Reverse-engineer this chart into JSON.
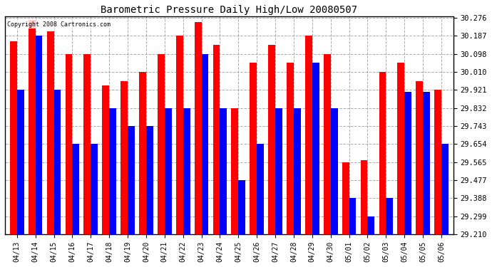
{
  "title": "Barometric Pressure Daily High/Low 20080507",
  "copyright": "Copyright 2008 Cartronics.com",
  "dates": [
    "04/13",
    "04/14",
    "04/15",
    "04/16",
    "04/17",
    "04/18",
    "04/19",
    "04/20",
    "04/21",
    "04/22",
    "04/23",
    "04/24",
    "04/25",
    "04/26",
    "04/27",
    "04/28",
    "04/29",
    "04/30",
    "05/01",
    "05/02",
    "05/03",
    "05/04",
    "05/05",
    "05/06"
  ],
  "highs": [
    30.16,
    30.265,
    30.21,
    30.098,
    30.098,
    29.943,
    29.965,
    30.01,
    30.098,
    30.187,
    30.254,
    30.143,
    29.832,
    30.054,
    30.143,
    30.054,
    30.187,
    30.098,
    29.565,
    29.575,
    30.01,
    30.054,
    29.965,
    29.921
  ],
  "lows": [
    29.921,
    30.187,
    29.921,
    29.654,
    29.654,
    29.832,
    29.743,
    29.743,
    29.832,
    29.832,
    30.098,
    29.832,
    29.477,
    29.654,
    29.832,
    29.832,
    30.054,
    29.832,
    29.388,
    29.299,
    29.388,
    29.91,
    29.91,
    29.654
  ],
  "ymin": 29.21,
  "ymax": 30.276,
  "yticks": [
    30.276,
    30.187,
    30.098,
    30.01,
    29.921,
    29.832,
    29.743,
    29.654,
    29.565,
    29.477,
    29.388,
    29.299,
    29.21
  ],
  "high_color": "#ff0000",
  "low_color": "#0000ff",
  "bg_color": "#ffffff",
  "grid_color": "#888888",
  "title_fontsize": 10,
  "bar_width": 0.38
}
